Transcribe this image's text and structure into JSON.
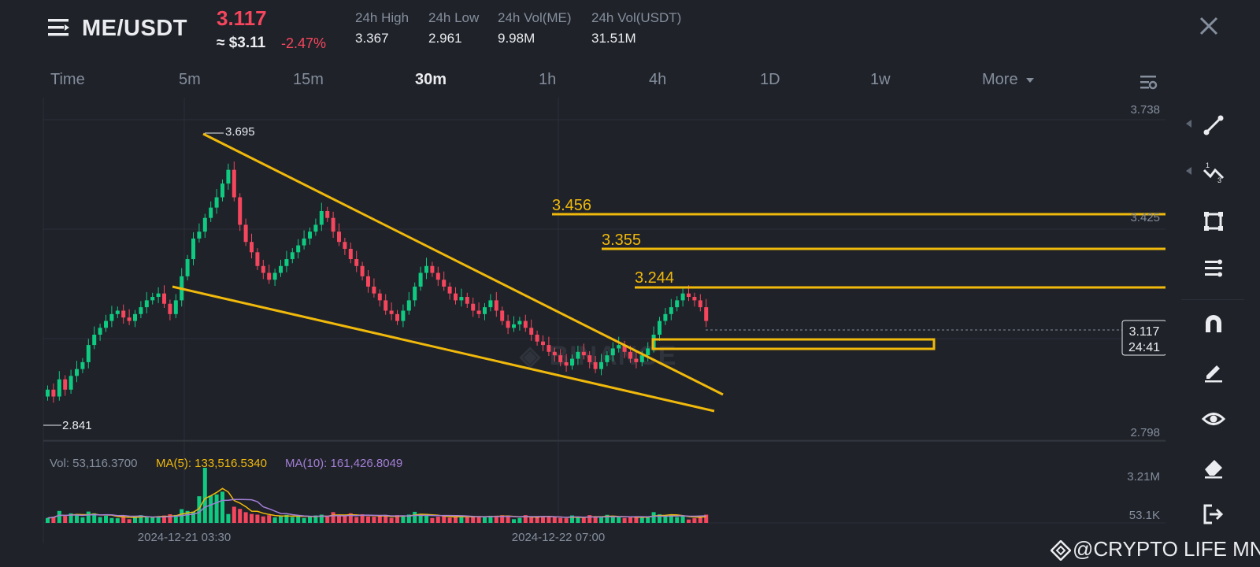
{
  "header": {
    "pair": "ME/USDT",
    "price": "3.117",
    "approx_usd": "≈ $3.11",
    "change": "-2.47%",
    "stats": [
      {
        "label": "24h High",
        "value": "3.367"
      },
      {
        "label": "24h Low",
        "value": "2.961"
      },
      {
        "label": "24h Vol(ME)",
        "value": "9.98M"
      },
      {
        "label": "24h Vol(USDT)",
        "value": "31.51M"
      }
    ]
  },
  "timeframes": [
    "Time",
    "5m",
    "15m",
    "30m",
    "1h",
    "4h",
    "1D",
    "1w",
    "More"
  ],
  "active_timeframe": "30m",
  "watermark": "BINANCE",
  "credit": "@CRYPTO LIFE MNE",
  "icons": {
    "menu": "menu-icon",
    "close": "close-icon",
    "settings": "chart-settings-icon",
    "tools": [
      "trendline-icon",
      "fib-icon",
      "rectangle-icon",
      "indicators-icon",
      "magnet-icon",
      "pencil-icon",
      "eye-icon",
      "eraser-icon",
      "exit-icon"
    ]
  },
  "colors": {
    "up": "#0ecb81",
    "down": "#f6465d",
    "accent": "#f0b90b",
    "bg": "#1f2229"
  },
  "chart_data": {
    "type": "candlestick",
    "price_axis": {
      "max_label": "3.738",
      "mid_label": "3.425",
      "min_label": "2.798",
      "ylim": [
        2.798,
        3.738
      ]
    },
    "current_price": {
      "value": "3.117",
      "countdown": "24:41"
    },
    "high_marker": "3.695",
    "low_marker": "2.841",
    "levels": [
      {
        "value": 3.456,
        "label": "3.456"
      },
      {
        "value": 3.355,
        "label": "3.355"
      },
      {
        "value": 3.244,
        "label": "3.244"
      }
    ],
    "volume": {
      "vol_label": "Vol: 53,116.3700",
      "ma5_label": "MA(5): 133,516.5340",
      "ma10_label": "MA(10): 161,426.8049",
      "axis_top": "3.21M",
      "axis_bottom": "53.1K"
    },
    "x_labels": [
      "2024-12-21 03:30",
      "2024-12-22 07:00"
    ],
    "closes": [
      2.92,
      2.9,
      2.95,
      2.92,
      2.96,
      2.98,
      3.0,
      3.05,
      3.08,
      3.1,
      3.12,
      3.14,
      3.15,
      3.13,
      3.12,
      3.14,
      3.16,
      3.18,
      3.19,
      3.2,
      3.17,
      3.14,
      3.18,
      3.25,
      3.3,
      3.36,
      3.38,
      3.42,
      3.45,
      3.48,
      3.52,
      3.56,
      3.48,
      3.4,
      3.35,
      3.32,
      3.28,
      3.26,
      3.24,
      3.26,
      3.28,
      3.3,
      3.32,
      3.34,
      3.36,
      3.38,
      3.4,
      3.44,
      3.42,
      3.38,
      3.35,
      3.33,
      3.3,
      3.28,
      3.25,
      3.22,
      3.2,
      3.18,
      3.15,
      3.14,
      3.12,
      3.15,
      3.18,
      3.22,
      3.26,
      3.28,
      3.26,
      3.24,
      3.22,
      3.2,
      3.18,
      3.19,
      3.17,
      3.15,
      3.14,
      3.16,
      3.18,
      3.15,
      3.12,
      3.1,
      3.11,
      3.12,
      3.1,
      3.08,
      3.06,
      3.05,
      3.03,
      3.02,
      3.0,
      2.99,
      3.01,
      3.03,
      3.02,
      3.0,
      2.98,
      3.0,
      3.02,
      3.04,
      3.05,
      3.03,
      3.01,
      3.0,
      3.02,
      3.04,
      3.08,
      3.12,
      3.14,
      3.16,
      3.18,
      3.2,
      3.19,
      3.18,
      3.16,
      3.12
    ]
  }
}
